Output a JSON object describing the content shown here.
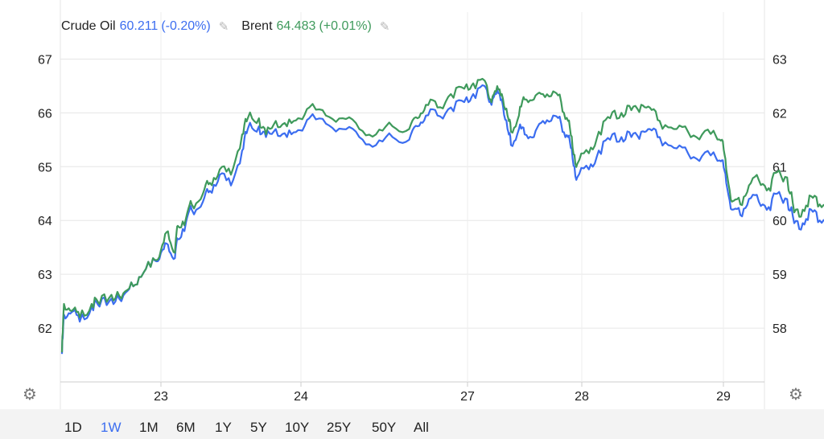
{
  "legend": {
    "crude_symbol": "Crude Oil",
    "crude_value": "60.211",
    "crude_change": "(-0.20%)",
    "brent_symbol": "Brent",
    "brent_value": "64.483",
    "brent_change": "(+0.01%)",
    "crude_color": "#3b6df0",
    "brent_color": "#3f9a5c"
  },
  "range_buttons": [
    "1D",
    "1W",
    "1M",
    "6M",
    "1Y",
    "5Y",
    "10Y",
    "25Y",
    "50Y",
    "All"
  ],
  "active_range": "1W",
  "chart_data": {
    "type": "line",
    "x_tick_labels": [
      "23",
      "24",
      "27",
      "28",
      "29"
    ],
    "left_axis": {
      "ticks": [
        "62",
        "63",
        "64",
        "65",
        "66",
        "67"
      ],
      "ylim": [
        61.0,
        67.5
      ]
    },
    "right_axis": {
      "ticks": [
        "58",
        "59",
        "60",
        "61",
        "62",
        "63"
      ],
      "ylim": [
        57.0,
        63.5
      ]
    },
    "grid": true,
    "series": [
      {
        "name": "Crude Oil",
        "color": "#3b6df0",
        "axis": "right",
        "points": [
          [
            0.0,
            57.52
          ],
          [
            0.02,
            58.25
          ],
          [
            0.1,
            58.3
          ],
          [
            0.18,
            58.12
          ],
          [
            0.3,
            58.4
          ],
          [
            0.38,
            58.4
          ],
          [
            0.5,
            58.55
          ],
          [
            0.6,
            58.5
          ],
          [
            0.7,
            58.85
          ],
          [
            0.8,
            58.95
          ],
          [
            0.92,
            59.3
          ],
          [
            1.0,
            59.4
          ],
          [
            1.05,
            59.55
          ],
          [
            1.1,
            59.3
          ],
          [
            1.12,
            59.65
          ],
          [
            1.18,
            59.98
          ],
          [
            1.22,
            60.2
          ],
          [
            1.3,
            60.35
          ],
          [
            1.35,
            60.55
          ],
          [
            1.42,
            60.85
          ],
          [
            1.5,
            60.65
          ],
          [
            1.58,
            61.3
          ],
          [
            1.62,
            61.7
          ],
          [
            1.7,
            61.75
          ],
          [
            1.75,
            61.55
          ],
          [
            1.82,
            61.7
          ],
          [
            1.9,
            61.55
          ],
          [
            1.98,
            61.68
          ],
          [
            2.05,
            61.9
          ],
          [
            2.15,
            61.8
          ],
          [
            2.25,
            61.7
          ],
          [
            2.35,
            61.55
          ],
          [
            2.45,
            61.4
          ],
          [
            2.55,
            61.55
          ],
          [
            2.65,
            61.5
          ],
          [
            2.7,
            61.75
          ],
          [
            2.75,
            61.95
          ],
          [
            2.82,
            61.95
          ],
          [
            2.9,
            62.1
          ],
          [
            2.98,
            62.2
          ],
          [
            3.05,
            62.35
          ],
          [
            3.15,
            62.5
          ],
          [
            3.2,
            62.2
          ],
          [
            3.25,
            62.35
          ],
          [
            3.3,
            62.25
          ],
          [
            3.35,
            61.7
          ],
          [
            3.38,
            61.4
          ],
          [
            3.45,
            61.7
          ],
          [
            3.5,
            61.6
          ],
          [
            3.58,
            61.55
          ],
          [
            3.66,
            61.85
          ],
          [
            3.75,
            61.95
          ],
          [
            3.82,
            61.8
          ],
          [
            3.88,
            61.55
          ],
          [
            3.92,
            61.15
          ],
          [
            3.96,
            60.8
          ],
          [
            4.05,
            60.95
          ],
          [
            4.12,
            61.3
          ],
          [
            4.2,
            61.5
          ],
          [
            4.28,
            61.55
          ],
          [
            4.35,
            61.55
          ],
          [
            4.42,
            61.65
          ],
          [
            4.48,
            61.7
          ],
          [
            4.55,
            61.55
          ],
          [
            4.65,
            61.35
          ],
          [
            4.75,
            61.25
          ],
          [
            4.85,
            61.2
          ],
          [
            4.95,
            61.15
          ],
          [
            4.99,
            61.12
          ],
          [
            5.02,
            60.7
          ],
          [
            5.06,
            60.2
          ],
          [
            5.12,
            60.1
          ],
          [
            5.18,
            60.4
          ],
          [
            5.25,
            60.35
          ],
          [
            5.32,
            60.25
          ],
          [
            5.38,
            60.5
          ],
          [
            5.45,
            60.4
          ],
          [
            5.5,
            59.95
          ],
          [
            5.56,
            59.95
          ],
          [
            5.62,
            60.2
          ],
          [
            5.68,
            60.0
          ],
          [
            5.75,
            60.2
          ],
          [
            5.8,
            60.15
          ],
          [
            5.85,
            60.3
          ],
          [
            5.9,
            60.22
          ]
        ]
      },
      {
        "name": "Brent",
        "color": "#3f9a5c",
        "axis": "left",
        "points": [
          [
            0.0,
            61.55
          ],
          [
            0.02,
            62.45
          ],
          [
            0.1,
            62.32
          ],
          [
            0.18,
            62.2
          ],
          [
            0.3,
            62.45
          ],
          [
            0.38,
            62.45
          ],
          [
            0.5,
            62.62
          ],
          [
            0.6,
            62.55
          ],
          [
            0.7,
            62.85
          ],
          [
            0.8,
            62.95
          ],
          [
            0.92,
            63.3
          ],
          [
            1.0,
            63.45
          ],
          [
            1.05,
            63.8
          ],
          [
            1.1,
            63.4
          ],
          [
            1.12,
            63.9
          ],
          [
            1.18,
            64.05
          ],
          [
            1.22,
            64.3
          ],
          [
            1.3,
            64.5
          ],
          [
            1.35,
            64.7
          ],
          [
            1.42,
            64.95
          ],
          [
            1.5,
            64.85
          ],
          [
            1.58,
            65.6
          ],
          [
            1.62,
            65.9
          ],
          [
            1.7,
            65.9
          ],
          [
            1.75,
            65.6
          ],
          [
            1.82,
            65.85
          ],
          [
            1.9,
            65.75
          ],
          [
            1.98,
            65.9
          ],
          [
            2.05,
            66.1
          ],
          [
            2.15,
            65.95
          ],
          [
            2.25,
            65.9
          ],
          [
            2.35,
            65.7
          ],
          [
            2.45,
            65.6
          ],
          [
            2.55,
            65.75
          ],
          [
            2.65,
            65.7
          ],
          [
            2.7,
            65.9
          ],
          [
            2.75,
            66.15
          ],
          [
            2.82,
            66.1
          ],
          [
            2.9,
            66.35
          ],
          [
            2.98,
            66.45
          ],
          [
            3.05,
            66.55
          ],
          [
            3.15,
            66.6
          ],
          [
            3.2,
            66.25
          ],
          [
            3.25,
            66.4
          ],
          [
            3.3,
            66.35
          ],
          [
            3.35,
            65.95
          ],
          [
            3.38,
            65.65
          ],
          [
            3.45,
            65.95
          ],
          [
            3.5,
            66.25
          ],
          [
            3.58,
            66.25
          ],
          [
            3.66,
            66.35
          ],
          [
            3.75,
            66.4
          ],
          [
            3.82,
            66.2
          ],
          [
            3.88,
            65.85
          ],
          [
            3.92,
            65.35
          ],
          [
            3.96,
            65.05
          ],
          [
            4.05,
            65.25
          ],
          [
            4.12,
            65.65
          ],
          [
            4.2,
            65.9
          ],
          [
            4.28,
            66.0
          ],
          [
            4.35,
            66.05
          ],
          [
            4.42,
            66.15
          ],
          [
            4.48,
            66.1
          ],
          [
            4.55,
            65.85
          ],
          [
            4.65,
            65.7
          ],
          [
            4.75,
            65.65
          ],
          [
            4.85,
            65.6
          ],
          [
            4.95,
            65.55
          ],
          [
            4.99,
            65.5
          ],
          [
            5.02,
            64.95
          ],
          [
            5.06,
            64.35
          ],
          [
            5.12,
            64.3
          ],
          [
            5.18,
            64.65
          ],
          [
            5.25,
            64.75
          ],
          [
            5.32,
            64.6
          ],
          [
            5.38,
            64.9
          ],
          [
            5.45,
            64.8
          ],
          [
            5.5,
            64.15
          ],
          [
            5.56,
            64.2
          ],
          [
            5.62,
            64.45
          ],
          [
            5.68,
            64.3
          ],
          [
            5.75,
            64.45
          ],
          [
            5.8,
            64.45
          ],
          [
            5.85,
            64.58
          ],
          [
            5.9,
            64.48
          ]
        ]
      }
    ]
  }
}
